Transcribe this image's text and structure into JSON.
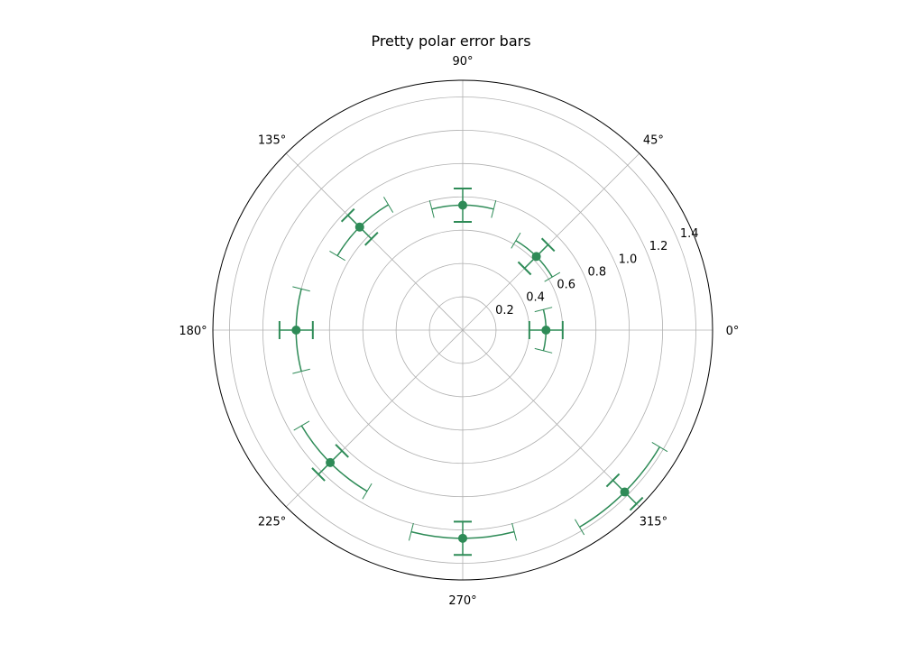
{
  "chart_data": {
    "type": "scatter",
    "projection": "polar",
    "title": "Pretty polar error bars",
    "theta_unit": "degrees",
    "r_range": [
      0,
      1.5
    ],
    "grid": true,
    "theta_tick_labels": [
      "0°",
      "45°",
      "90°",
      "135°",
      "180°",
      "225°",
      "270°",
      "315°"
    ],
    "r_tick_labels": [
      "0.2",
      "0.4",
      "0.6",
      "0.8",
      "1.0",
      "1.2",
      "1.4"
    ],
    "series": [
      {
        "marker_color": "#2e8b57",
        "points": [
          {
            "theta": 0,
            "r": 0.5,
            "r_err": 0.1,
            "theta_err": 0.25
          },
          {
            "theta": 45,
            "r": 0.625,
            "r_err": 0.1,
            "theta_err": 0.25
          },
          {
            "theta": 90,
            "r": 0.75,
            "r_err": 0.1,
            "theta_err": 0.25
          },
          {
            "theta": 135,
            "r": 0.875,
            "r_err": 0.1,
            "theta_err": 0.25
          },
          {
            "theta": 180,
            "r": 1.0,
            "r_err": 0.1,
            "theta_err": 0.25
          },
          {
            "theta": 225,
            "r": 1.125,
            "r_err": 0.1,
            "theta_err": 0.25
          },
          {
            "theta": 270,
            "r": 1.25,
            "r_err": 0.1,
            "theta_err": 0.25
          },
          {
            "theta": 315,
            "r": 1.375,
            "r_err": 0.1,
            "theta_err": 0.25
          }
        ]
      }
    ]
  }
}
